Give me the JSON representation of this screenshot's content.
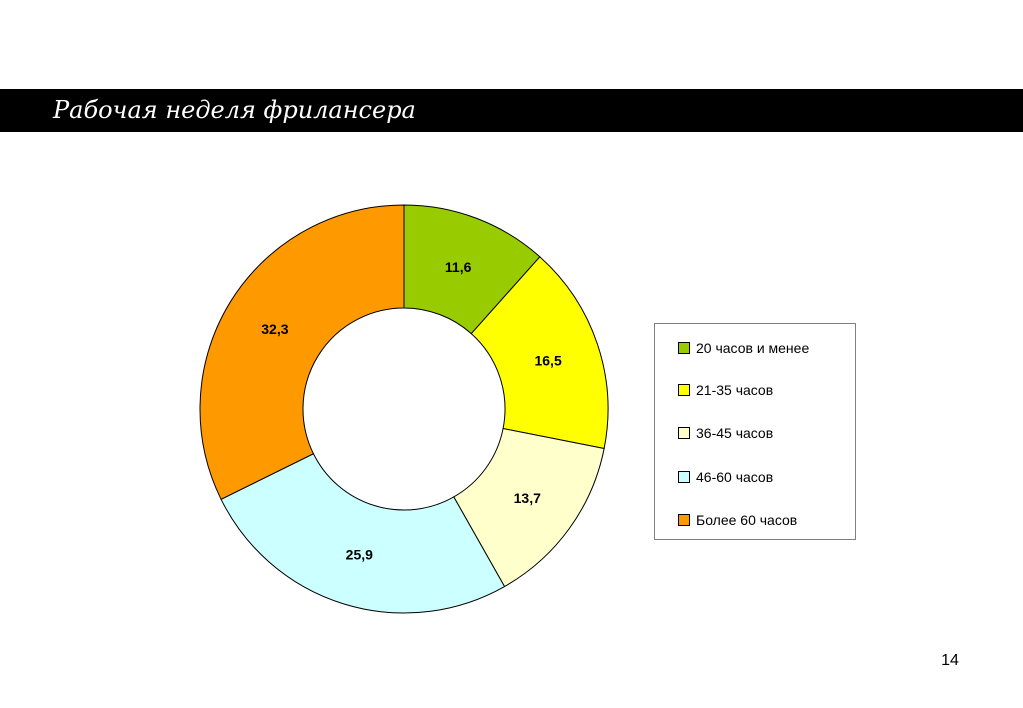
{
  "slide": {
    "title": "Рабочая неделя фрилансера",
    "page_number": "14"
  },
  "chart_data": {
    "type": "pie",
    "subtype": "donut",
    "title": "",
    "categories": [
      "20 часов и менее",
      "21-35 часов",
      "36-45 часов",
      "46-60 часов",
      "Более 60 часов"
    ],
    "values": [
      11.6,
      16.5,
      13.7,
      25.9,
      32.3
    ],
    "value_labels": [
      "11,6",
      "16,5",
      "13,7",
      "25,9",
      "32,3"
    ],
    "colors": [
      "#99CC00",
      "#FFFF00",
      "#FFFFCC",
      "#CCFFFF",
      "#FF9900"
    ],
    "start_angle": "12 o'clock",
    "direction": "clockwise",
    "legend": {
      "position": "right",
      "entries": [
        "20 часов и менее",
        "21-35 часов",
        "36-45 часов",
        "46-60 часов",
        "Более 60 часов"
      ]
    }
  }
}
